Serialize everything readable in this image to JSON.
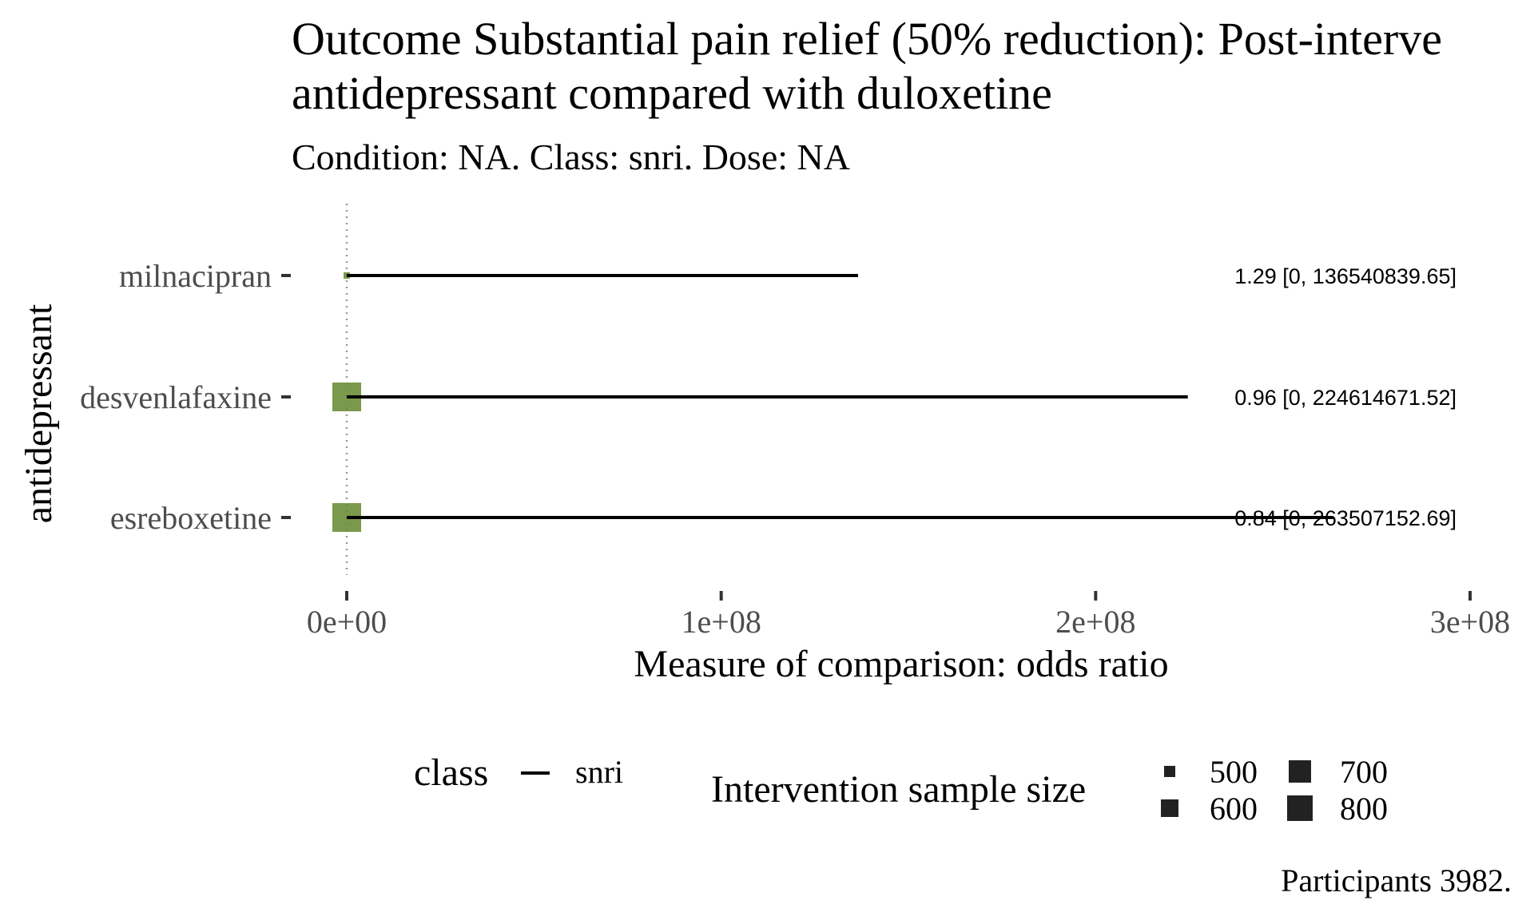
{
  "colors": {
    "point": "#6b8e3a",
    "line": "#000000",
    "refline": "#9a9a9a",
    "legend_key": "#222222"
  },
  "chart_data": {
    "type": "forest",
    "title_line1": "Outcome Substantial pain relief (50% reduction): Post-interve",
    "title_line2": "antidepressant compared with duloxetine",
    "subtitle": "Condition: NA. Class: snri. Dose: NA",
    "ylabel": "antidepressant",
    "xlabel": "Measure of comparison: odds ratio",
    "xlim": [
      0,
      300000000
    ],
    "xticks": [
      {
        "value": 0,
        "label": "0e+00"
      },
      {
        "value": 100000000,
        "label": "1e+08"
      },
      {
        "value": 200000000,
        "label": "2e+08"
      },
      {
        "value": 300000000,
        "label": "3e+08"
      }
    ],
    "reference_line": 1,
    "rows": [
      {
        "name": "milnacipran",
        "estimate": 1.29,
        "lower": 0,
        "upper": 136540839.65,
        "sample_size": 470,
        "label": "1.29 [0, 136540839.65]"
      },
      {
        "name": "desvenlafaxine",
        "estimate": 0.96,
        "lower": 0,
        "upper": 224614671.52,
        "sample_size": 820,
        "label": "0.96 [0, 224614671.52]"
      },
      {
        "name": "esreboxetine",
        "estimate": 0.84,
        "lower": 0,
        "upper": 263507152.69,
        "sample_size": 820,
        "label": "0.84 [0, 263507152.69]"
      }
    ],
    "legend_class": {
      "title": "class",
      "items": [
        "snri"
      ]
    },
    "legend_size": {
      "title": "Intervention sample size",
      "items": [
        {
          "label": "500",
          "value": 500
        },
        {
          "label": "600",
          "value": 600
        },
        {
          "label": "700",
          "value": 700
        },
        {
          "label": "800",
          "value": 800
        }
      ]
    },
    "caption": "Participants 3982."
  }
}
